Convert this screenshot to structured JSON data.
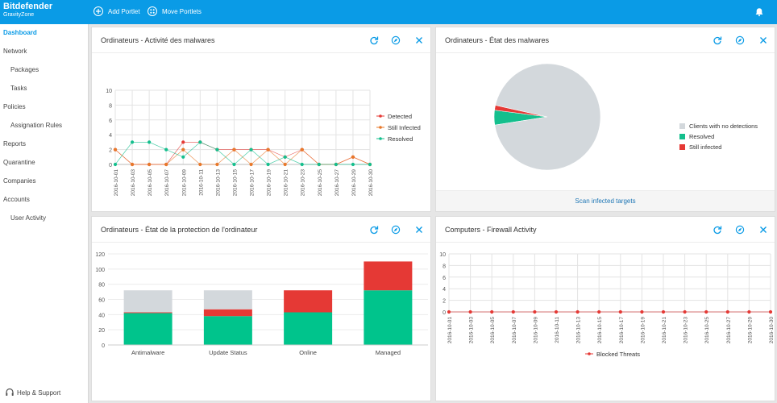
{
  "brand": {
    "name": "Bitdefender",
    "product": "GravityZone"
  },
  "topbar": {
    "add_portlet": "Add Portlet",
    "move_portlets": "Move Portlets"
  },
  "colors": {
    "accent": "#0a9be6",
    "detected": "#e53935",
    "still_infected": "#e8782a",
    "resolved": "#14bf8d",
    "no_detection": "#d3d8dc",
    "green": "#00c48c",
    "red": "#e53935",
    "grey": "#d3d8dc",
    "link": "#1e76b5"
  },
  "sidebar": {
    "items": [
      {
        "label": "Dashboard",
        "active": true,
        "indent": false
      },
      {
        "label": "Network",
        "active": false,
        "indent": false
      },
      {
        "label": "Packages",
        "active": false,
        "indent": true
      },
      {
        "label": "Tasks",
        "active": false,
        "indent": true
      },
      {
        "label": "Policies",
        "active": false,
        "indent": false
      },
      {
        "label": "Assignation Rules",
        "active": false,
        "indent": true
      },
      {
        "label": "Reports",
        "active": false,
        "indent": false
      },
      {
        "label": "Quarantine",
        "active": false,
        "indent": false
      },
      {
        "label": "Companies",
        "active": false,
        "indent": false
      },
      {
        "label": "Accounts",
        "active": false,
        "indent": false
      },
      {
        "label": "User Activity",
        "active": false,
        "indent": true
      }
    ],
    "help": "Help & Support"
  },
  "portlets": {
    "malware_activity": {
      "title": "Ordinateurs - Activité des malwares"
    },
    "malware_status": {
      "title": "Ordinateurs - État des malwares",
      "footer_link": "Scan infected targets"
    },
    "protection_status": {
      "title": "Ordinateurs - État de la protection de l'ordinateur"
    },
    "firewall": {
      "title": "Computers - Firewall Activity"
    }
  },
  "chart_data": [
    {
      "type": "line",
      "x": [
        "2016-10-01",
        "2016-10-03",
        "2016-10-05",
        "2016-10-07",
        "2016-10-09",
        "2016-10-11",
        "2016-10-13",
        "2016-10-15",
        "2016-10-17",
        "2016-10-19",
        "2016-10-21",
        "2016-10-23",
        "2016-10-25",
        "2016-10-27",
        "2016-10-29",
        "2016-10-30"
      ],
      "ylim": [
        0,
        10
      ],
      "yticks": [
        0,
        2,
        4,
        6,
        8,
        10
      ],
      "grid": true,
      "legend": "right",
      "series": [
        {
          "name": "Detected",
          "color": "#e53935",
          "values": [
            2,
            0,
            0,
            0,
            3,
            3,
            2,
            2,
            2,
            2,
            1,
            2,
            0,
            0,
            1,
            0
          ]
        },
        {
          "name": "Still Infected",
          "color": "#e8782a",
          "values": [
            2,
            0,
            0,
            0,
            2,
            0,
            0,
            2,
            0,
            2,
            0,
            2,
            0,
            0,
            1,
            0
          ]
        },
        {
          "name": "Resolved",
          "color": "#14bf8d",
          "values": [
            0,
            3,
            3,
            2,
            1,
            3,
            2,
            0,
            2,
            0,
            1,
            0,
            0,
            0,
            0,
            0
          ]
        }
      ]
    },
    {
      "type": "pie",
      "legend": "right",
      "slices": [
        {
          "name": "Clients with no detections",
          "value": 94,
          "color": "#d3d8dc"
        },
        {
          "name": "Resolved",
          "value": 4.5,
          "color": "#14bf8d"
        },
        {
          "name": "Still infected",
          "value": 1.5,
          "color": "#e53935"
        }
      ]
    },
    {
      "type": "bar",
      "stacked": true,
      "categories": [
        "Antimalware",
        "Update Status",
        "Online",
        "Managed"
      ],
      "ylim": [
        0,
        120
      ],
      "yticks": [
        0,
        20,
        40,
        60,
        80,
        100,
        120
      ],
      "series": [
        {
          "color": "#00c48c",
          "values": [
            42,
            38,
            43,
            72
          ]
        },
        {
          "color": "#e53935",
          "values": [
            1,
            9,
            29,
            38
          ]
        },
        {
          "color": "#d3d8dc",
          "values": [
            29,
            25,
            0,
            0
          ]
        }
      ]
    },
    {
      "type": "line",
      "x": [
        "2016-10-01",
        "2016-10-03",
        "2016-10-05",
        "2016-10-07",
        "2016-10-09",
        "2016-10-11",
        "2016-10-13",
        "2016-10-15",
        "2016-10-17",
        "2016-10-19",
        "2016-10-21",
        "2016-10-23",
        "2016-10-25",
        "2016-10-27",
        "2016-10-29",
        "2016-10-30"
      ],
      "ylim": [
        0,
        10
      ],
      "yticks": [
        0,
        2,
        4,
        6,
        8,
        10
      ],
      "grid": true,
      "legend": "bottom",
      "series": [
        {
          "name": "Blocked Threats",
          "color": "#e53935",
          "values": [
            0,
            0,
            0,
            0,
            0,
            0,
            0,
            0,
            0,
            0,
            0,
            0,
            0,
            0,
            0,
            0
          ]
        }
      ]
    }
  ]
}
